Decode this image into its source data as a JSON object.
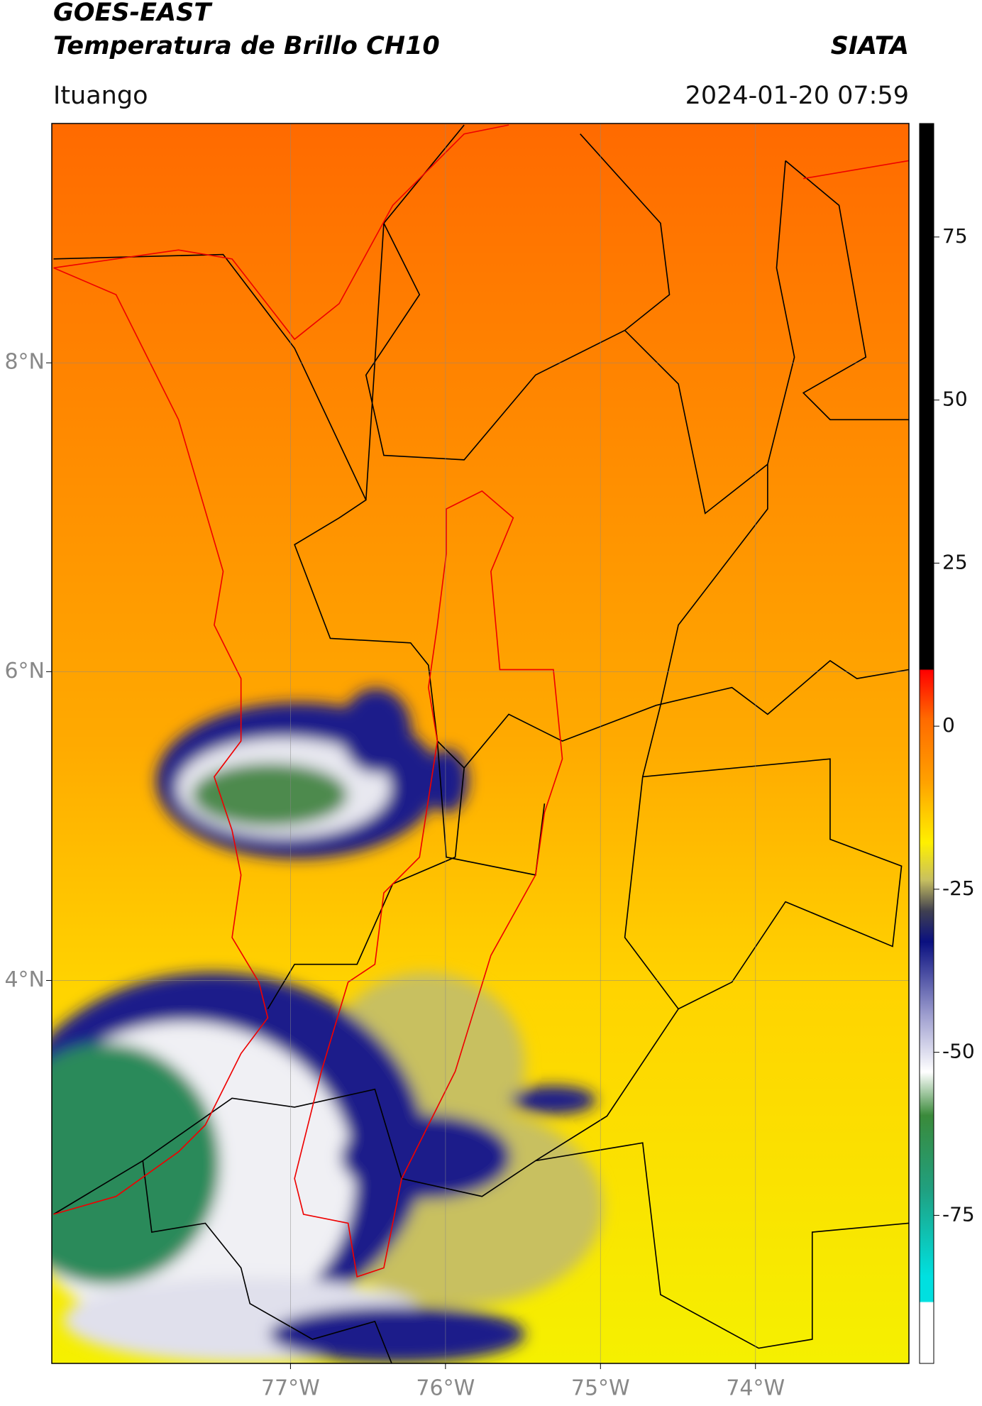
{
  "header": {
    "title": "GOES-EAST",
    "subtitle": "Temperatura de Brillo CH10",
    "source": "SIATA",
    "location": "Ituango",
    "timestamp": "2024-01-20 07:59"
  },
  "map": {
    "latlim": [
      1.52,
      9.55
    ],
    "lonlim": [
      -78.54,
      -73.01
    ],
    "latticks": [
      {
        "value": 8,
        "label": "8°N"
      },
      {
        "value": 6,
        "label": "6°N"
      },
      {
        "value": 4,
        "label": "4°N"
      }
    ],
    "lonticks": [
      {
        "value": -77,
        "label": "77°W"
      },
      {
        "value": -76,
        "label": "76°W"
      },
      {
        "value": -75,
        "label": "75°W"
      },
      {
        "value": -74,
        "label": "74°W"
      }
    ]
  },
  "colorbar": {
    "lim": [
      -97.7,
      92.4
    ],
    "ticks": [
      75,
      50,
      25,
      0,
      -25,
      -50,
      -75
    ]
  }
}
